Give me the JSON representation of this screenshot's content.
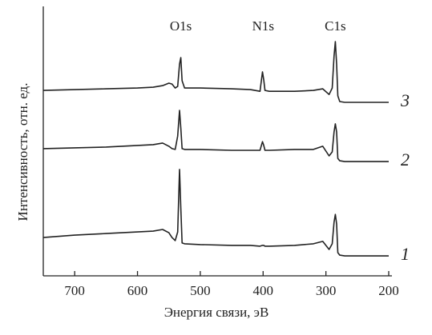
{
  "chart_data": {
    "type": "line",
    "x_label": "Энергия связи, эВ",
    "y_label": "Интенсивность, отн. ед.",
    "annotations": [
      "O1s",
      "N1s",
      "C1s"
    ],
    "x": [
      750,
      700,
      650,
      600,
      575,
      560,
      550,
      545,
      540,
      536,
      533,
      531,
      529,
      525,
      500,
      450,
      420,
      405,
      401,
      399,
      397,
      390,
      350,
      320,
      305,
      295,
      290,
      287,
      285,
      283,
      281,
      278,
      270,
      250,
      200
    ],
    "series": [
      {
        "name": "3",
        "color": "#222222",
        "values": [
          68.8,
          69.1,
          69.4,
          69.7,
          70.0,
          70.6,
          71.5,
          71.2,
          69.7,
          70.3,
          78.6,
          81.0,
          72.4,
          69.7,
          69.7,
          69.4,
          69.1,
          68.5,
          75.7,
          72.7,
          68.8,
          68.5,
          68.5,
          68.8,
          69.4,
          67.3,
          69.7,
          81.6,
          86.9,
          78.6,
          66.8,
          64.7,
          64.4,
          64.4,
          64.4
        ]
      },
      {
        "name": "2",
        "color": "#222222",
        "values": [
          47.2,
          47.5,
          47.8,
          48.4,
          48.7,
          49.3,
          48.1,
          47.2,
          46.9,
          51.9,
          61.4,
          54.9,
          47.2,
          46.9,
          46.9,
          46.6,
          46.6,
          46.6,
          49.8,
          48.4,
          46.6,
          46.6,
          46.9,
          46.9,
          48.1,
          44.5,
          46.0,
          53.4,
          56.4,
          53.4,
          43.6,
          42.7,
          42.4,
          42.4,
          42.4
        ]
      },
      {
        "name": "1",
        "color": "#222222",
        "values": [
          14.2,
          15.1,
          15.7,
          16.3,
          16.6,
          17.2,
          16.0,
          14.2,
          13.1,
          16.3,
          39.5,
          25.2,
          12.2,
          11.9,
          11.6,
          11.3,
          11.3,
          11.0,
          11.3,
          11.3,
          11.0,
          11.0,
          11.3,
          11.9,
          12.8,
          9.8,
          11.9,
          19.9,
          22.8,
          19.3,
          8.6,
          7.7,
          7.4,
          7.4,
          7.4
        ]
      }
    ],
    "xlim": [
      750,
      200
    ],
    "xticks": [
      700,
      600,
      500,
      400,
      300,
      200
    ],
    "ylim": [
      0,
      100
    ]
  }
}
